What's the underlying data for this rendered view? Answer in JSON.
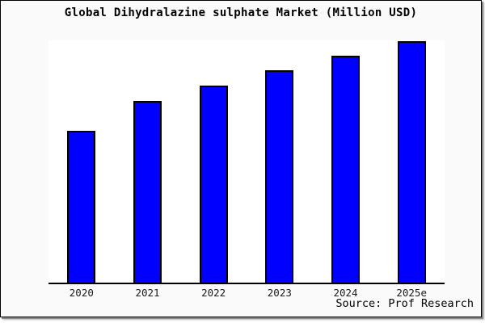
{
  "title": "Global Dihydralazine sulphate Market (Million USD)",
  "source_credit": "Source: Prof Research",
  "colors": {
    "bar_fill": "#0000FF",
    "bar_edge": "#000000",
    "plot_background": "#FFFFFF",
    "figure_background": "#FAFAFA",
    "axis_line": "#000000",
    "title_text": "#000000",
    "tick_text": "#1A1A1A",
    "frame_border": "#000000",
    "frame_shadow": "#8A8A8A"
  },
  "chart_data": {
    "type": "bar",
    "title": "Global Dihydralazine sulphate Market (Million USD)",
    "categories": [
      "2020",
      "2021",
      "2022",
      "2023",
      "2024",
      "2025e"
    ],
    "values": [
      62.9,
      75.3,
      81.6,
      88.0,
      94.0,
      100.0
    ],
    "values_note": "relative estimates from bar heights; chart shows no y-axis tick labels, units are Million USD per title",
    "xlabel": "",
    "ylabel": "",
    "ylim": [
      0,
      100.3
    ],
    "gridlines": false,
    "y_axis_visible": false,
    "legend_position": "none",
    "source": "Source: Prof Research"
  }
}
